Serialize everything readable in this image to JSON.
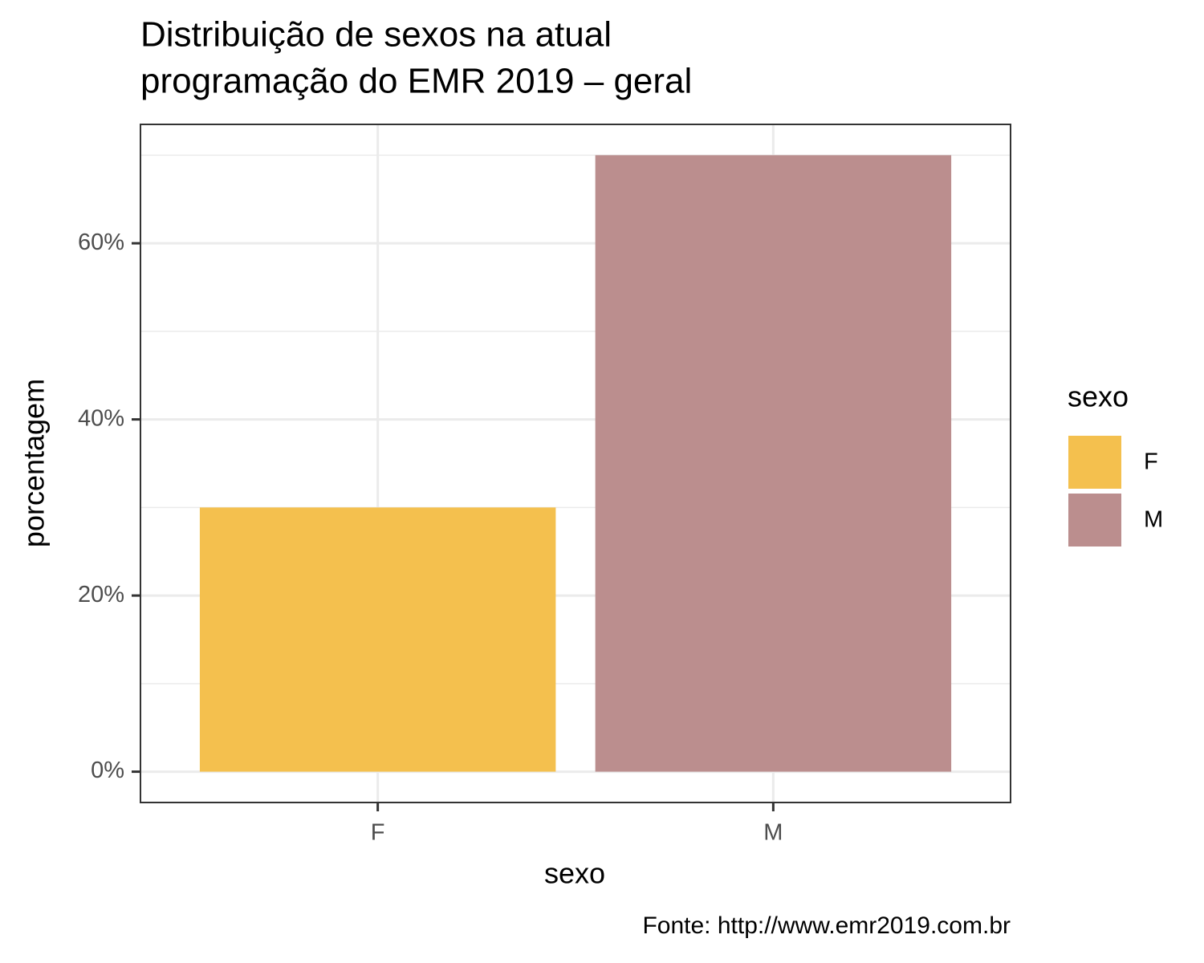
{
  "chart_data": {
    "type": "bar",
    "title": "Distribuição de sexos na atual",
    "title_line2": "programação do EMR 2019 – geral",
    "x_label": "sexo",
    "y_label": "porcentagem",
    "legend_title": "sexo",
    "caption": "Fonte: http://www.emr2019.com.br",
    "categories": [
      "F",
      "M"
    ],
    "values": [
      30,
      70
    ],
    "colors": [
      "#f4c04e",
      "#bb8e8e"
    ],
    "ylim": [
      -3.5,
      73.5
    ],
    "yticks": [
      {
        "value": 0,
        "label": "0%"
      },
      {
        "value": 20,
        "label": "20%"
      },
      {
        "value": 40,
        "label": "40%"
      },
      {
        "value": 60,
        "label": "60%"
      }
    ],
    "minor_yticks": [
      10,
      30,
      50,
      70
    ],
    "grid": true,
    "legend": "right"
  }
}
